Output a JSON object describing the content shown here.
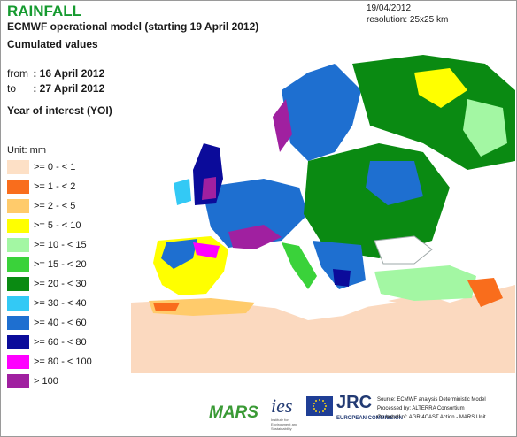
{
  "header": {
    "title": "RAINFALL",
    "subtitle": "ECMWF operational model (starting 19 April 2012)",
    "line2": "Cumulated values",
    "from_label": "from",
    "from_value": ": 16 April 2012",
    "to_label": "to",
    "to_value": ": 27 April 2012",
    "year_of_interest": "Year of interest (YOI)"
  },
  "meta": {
    "date": "19/04/2012",
    "resolution": "resolution: 25x25 km"
  },
  "legend": {
    "unit": "Unit: mm",
    "classes": [
      {
        "label": ">= 0 - < 1",
        "color": "#fde0c6"
      },
      {
        "label": ">= 1 - < 2",
        "color": "#f96d1c"
      },
      {
        "label": ">= 2 - < 5",
        "color": "#ffcb6b"
      },
      {
        "label": ">= 5 - < 10",
        "color": "#ffff00"
      },
      {
        "label": ">= 10 - < 15",
        "color": "#a3f7a3"
      },
      {
        "label": ">= 15 - < 20",
        "color": "#3ad23a"
      },
      {
        "label": ">= 20 - < 30",
        "color": "#0a8a12"
      },
      {
        "label": ">= 30 - < 40",
        "color": "#33c9f5"
      },
      {
        "label": ">= 40 - < 60",
        "color": "#1e6fd0"
      },
      {
        "label": ">= 60 - < 80",
        "color": "#0b0b9a"
      },
      {
        "label": ">= 80 - < 100",
        "color": "#ff00ff"
      },
      {
        "label": "> 100",
        "color": "#a020a0"
      }
    ]
  },
  "footer": {
    "mars": "MARS",
    "ies": "ies",
    "ies_sub": "Institute for Environment and Sustainability",
    "jrc": "JRC",
    "ec": "EUROPEAN COMMISSION",
    "credit_1": "Source: ECMWF analysis Deterministic Model",
    "credit_2": "Processed by: ALTERRA Consortium",
    "credit_3": "On behalf of: AGRI4CAST Action - MARS Unit"
  },
  "map_colors": {
    "sea": "#ffffff",
    "desert": "#fbd9bf",
    "coast": "#9ea8a8"
  }
}
